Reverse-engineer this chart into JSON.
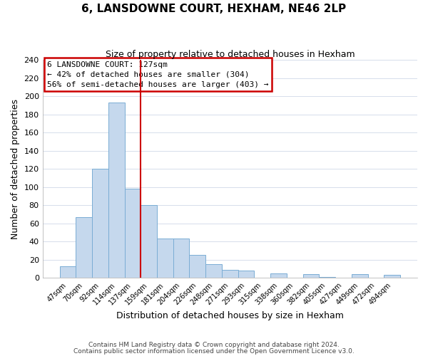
{
  "title": "6, LANSDOWNE COURT, HEXHAM, NE46 2LP",
  "subtitle": "Size of property relative to detached houses in Hexham",
  "xlabel": "Distribution of detached houses by size in Hexham",
  "ylabel": "Number of detached properties",
  "bar_labels": [
    "47sqm",
    "70sqm",
    "92sqm",
    "114sqm",
    "137sqm",
    "159sqm",
    "181sqm",
    "204sqm",
    "226sqm",
    "248sqm",
    "271sqm",
    "293sqm",
    "315sqm",
    "338sqm",
    "360sqm",
    "382sqm",
    "405sqm",
    "427sqm",
    "449sqm",
    "472sqm",
    "494sqm"
  ],
  "bar_values": [
    13,
    67,
    120,
    193,
    98,
    80,
    43,
    43,
    25,
    15,
    9,
    8,
    0,
    5,
    0,
    4,
    1,
    0,
    4,
    0,
    3
  ],
  "bar_color": "#c5d8ed",
  "bar_edge_color": "#7aadd4",
  "ylim": [
    0,
    240
  ],
  "yticks": [
    0,
    20,
    40,
    60,
    80,
    100,
    120,
    140,
    160,
    180,
    200,
    220,
    240
  ],
  "property_label": "6 LANSDOWNE COURT: 127sqm",
  "annotation_line1": "← 42% of detached houses are smaller (304)",
  "annotation_line2": "56% of semi-detached houses are larger (403) →",
  "annotation_box_color": "#ffffff",
  "annotation_box_edge": "#cc0000",
  "vline_color": "#cc0000",
  "footnote1": "Contains HM Land Registry data © Crown copyright and database right 2024.",
  "footnote2": "Contains public sector information licensed under the Open Government Licence v3.0.",
  "background_color": "#ffffff",
  "grid_color": "#d0d8e8"
}
